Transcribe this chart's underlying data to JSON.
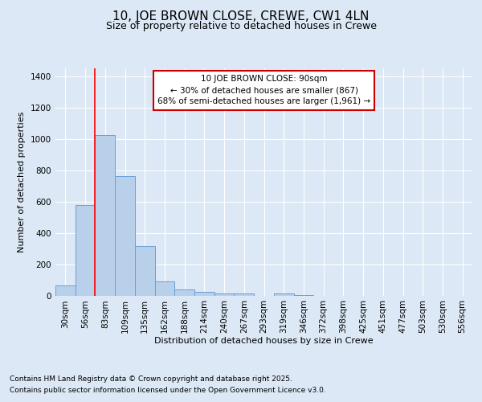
{
  "title": "10, JOE BROWN CLOSE, CREWE, CW1 4LN",
  "subtitle": "Size of property relative to detached houses in Crewe",
  "xlabel": "Distribution of detached houses by size in Crewe",
  "ylabel": "Number of detached properties",
  "categories": [
    "30sqm",
    "56sqm",
    "83sqm",
    "109sqm",
    "135sqm",
    "162sqm",
    "188sqm",
    "214sqm",
    "240sqm",
    "267sqm",
    "293sqm",
    "319sqm",
    "346sqm",
    "372sqm",
    "398sqm",
    "425sqm",
    "451sqm",
    "477sqm",
    "503sqm",
    "530sqm",
    "556sqm"
  ],
  "values": [
    65,
    580,
    1025,
    760,
    315,
    90,
    38,
    22,
    15,
    12,
    0,
    15,
    5,
    0,
    0,
    0,
    0,
    0,
    0,
    0,
    0
  ],
  "bar_color": "#b8d0ea",
  "bar_edge_color": "#6a9fd8",
  "background_color": "#dce8f5",
  "grid_color": "#ffffff",
  "red_line_x": 1.5,
  "annotation_text": "10 JOE BROWN CLOSE: 90sqm\n← 30% of detached houses are smaller (867)\n68% of semi-detached houses are larger (1,961) →",
  "annotation_box_color": "#ffffff",
  "annotation_box_edge": "#cc0000",
  "ylim": [
    0,
    1450
  ],
  "yticks": [
    0,
    200,
    400,
    600,
    800,
    1000,
    1200,
    1400
  ],
  "footer_line1": "Contains HM Land Registry data © Crown copyright and database right 2025.",
  "footer_line2": "Contains public sector information licensed under the Open Government Licence v3.0.",
  "title_fontsize": 11,
  "subtitle_fontsize": 9,
  "axis_fontsize": 8,
  "tick_fontsize": 7.5,
  "footer_fontsize": 6.5,
  "ann_fontsize": 7.5
}
